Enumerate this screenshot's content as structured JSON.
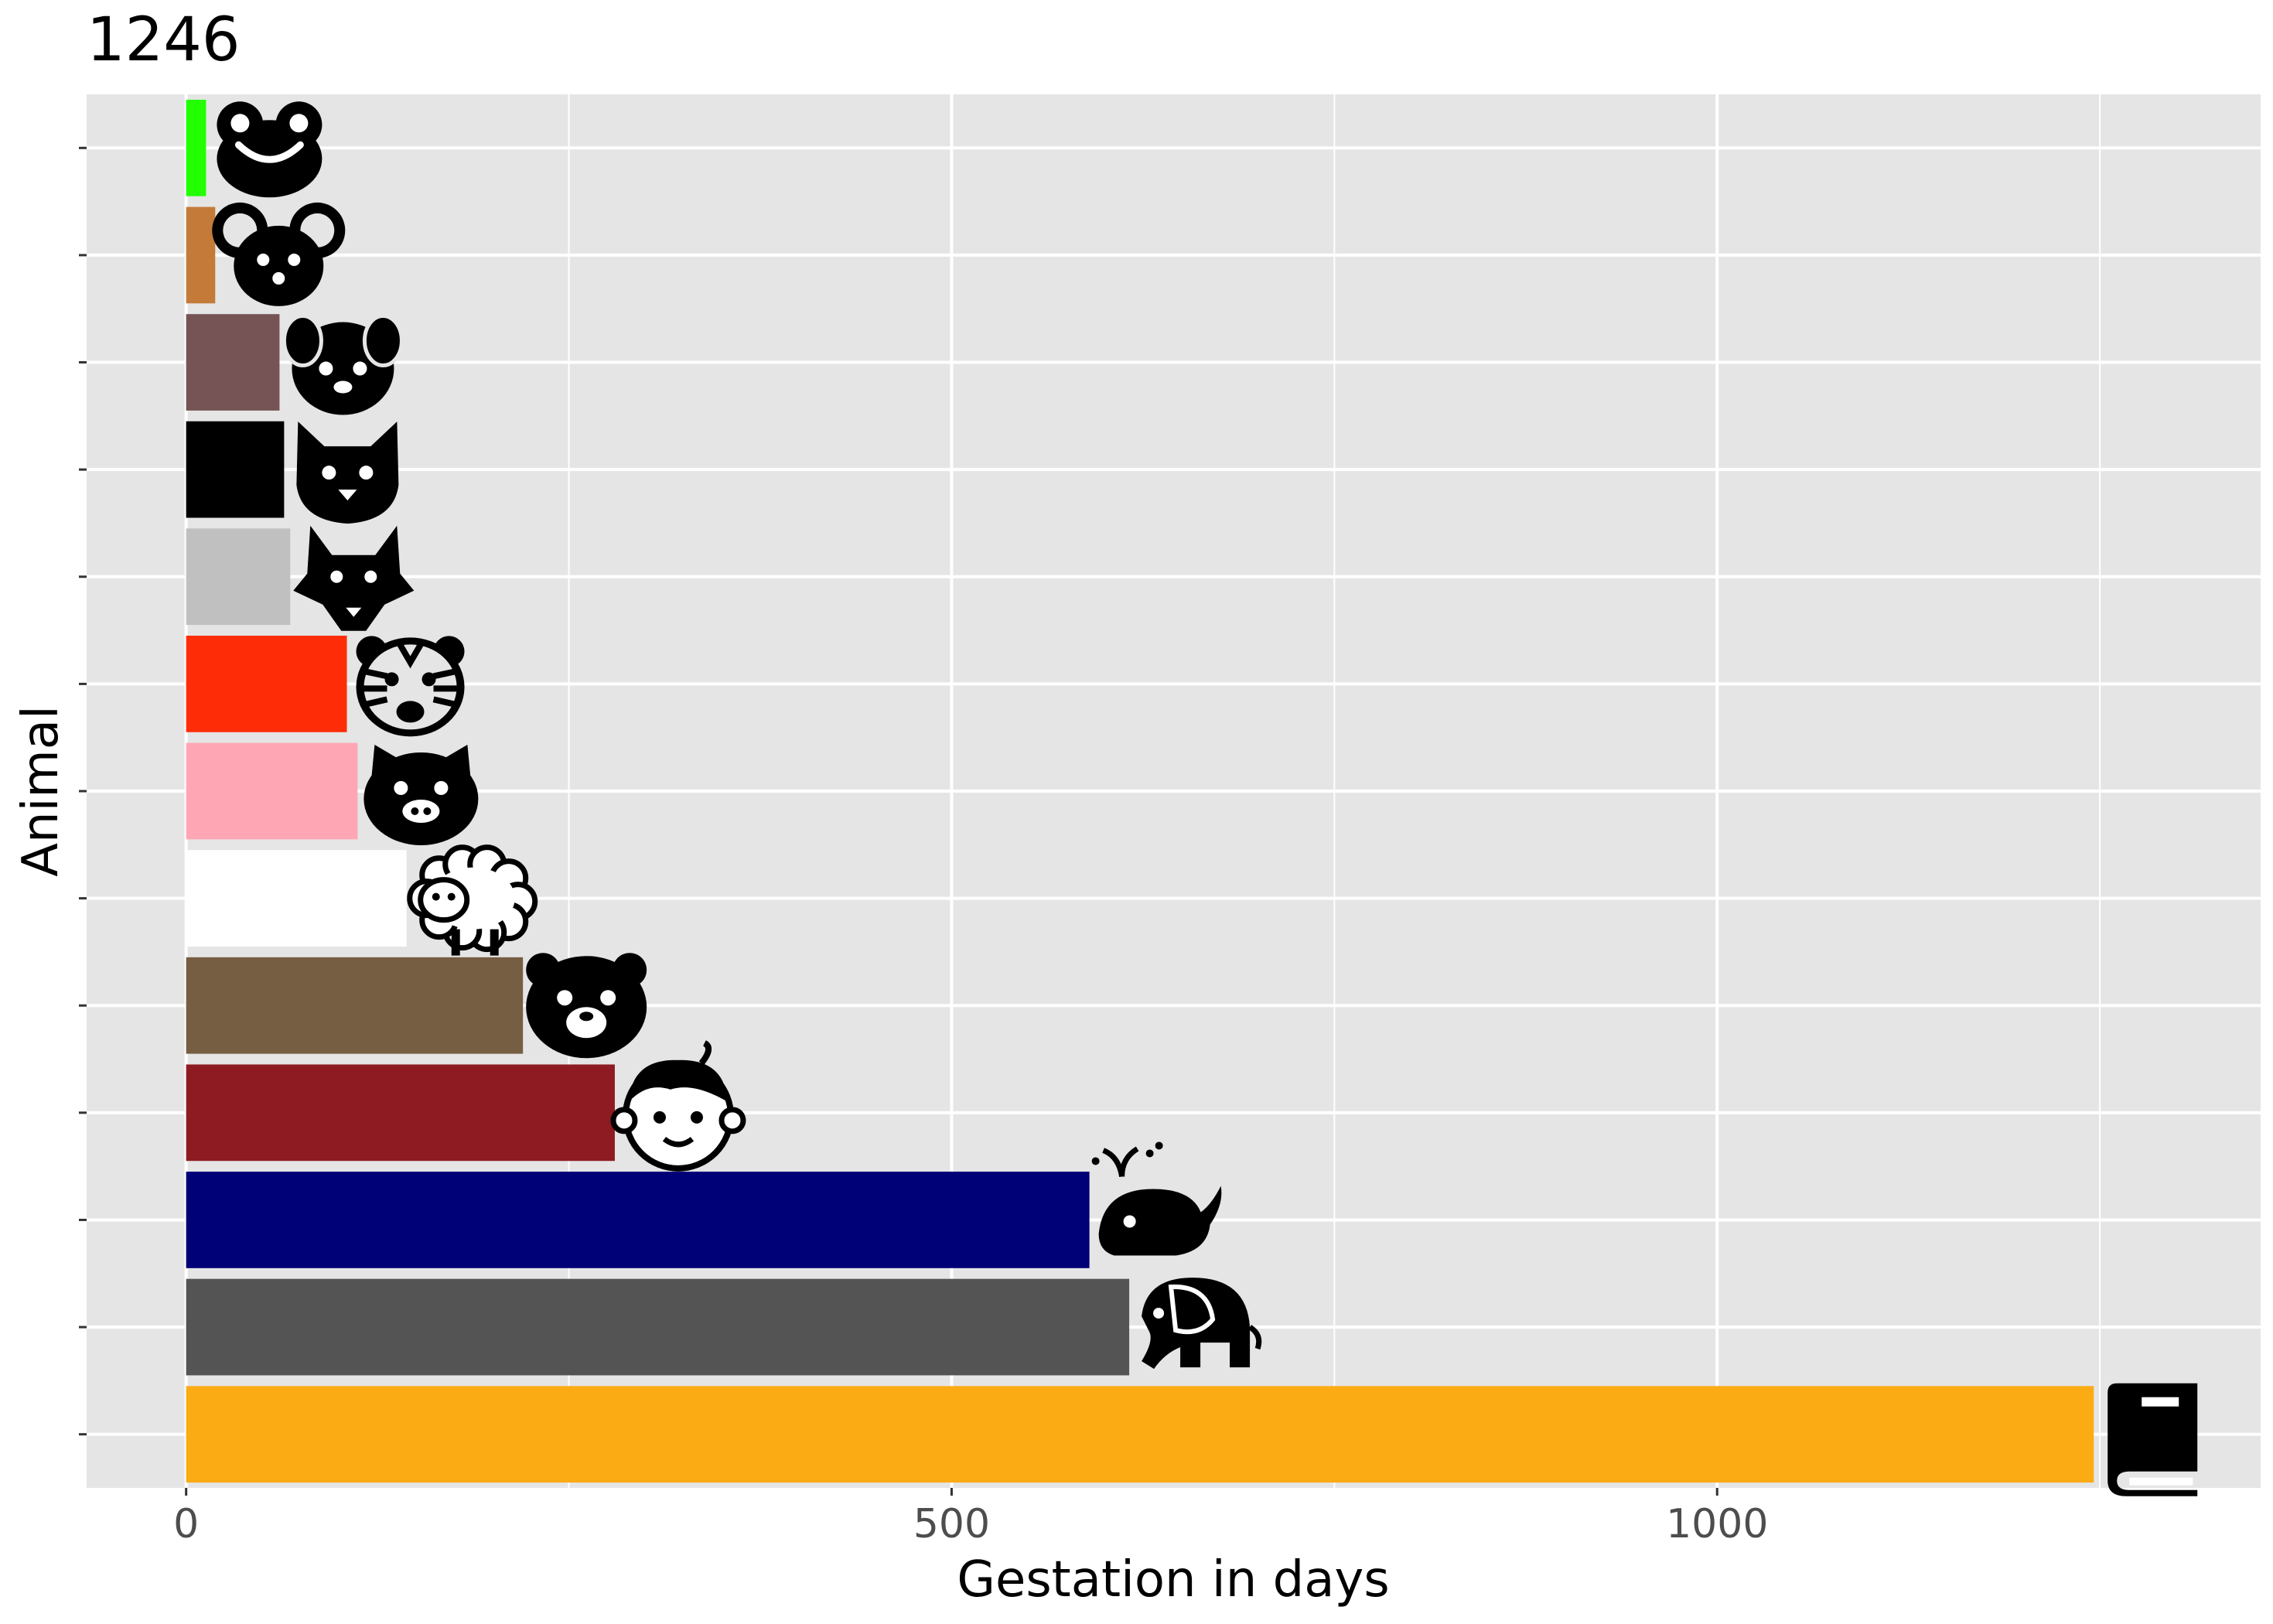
{
  "chart_data": {
    "type": "bar",
    "orientation": "horizontal",
    "title": "1246",
    "xlabel": "Gestation in days",
    "ylabel": "Animal",
    "xlim": [
      -65,
      1355
    ],
    "x_ticks": [
      0,
      500,
      1000
    ],
    "x_tick_labels": [
      "0",
      "500",
      "1000"
    ],
    "grid": true,
    "background": "#e5e5e5",
    "categories": [
      "frog",
      "mouse",
      "dog",
      "cat",
      "wolf",
      "tiger",
      "pig",
      "sheep",
      "bear",
      "human",
      "whale",
      "elephant",
      "book"
    ],
    "values": [
      13,
      19,
      61,
      64,
      68,
      105,
      112,
      144,
      220,
      280,
      590,
      616,
      1246
    ],
    "colors": [
      "#22ff00",
      "#c47b39",
      "#765455",
      "#000000",
      "#c0c0c0",
      "#ff2d07",
      "#ffa6b4",
      "#ffffff",
      "#765e42",
      "#8e1b22",
      "#000077",
      "#545454",
      "#fbab13"
    ],
    "icons": [
      "frog-icon",
      "mouse-icon",
      "dog-icon",
      "cat-icon",
      "wolf-icon",
      "tiger-icon",
      "pig-icon",
      "sheep-icon",
      "bear-icon",
      "baby-icon",
      "whale-icon",
      "elephant-icon",
      "book-icon"
    ]
  }
}
